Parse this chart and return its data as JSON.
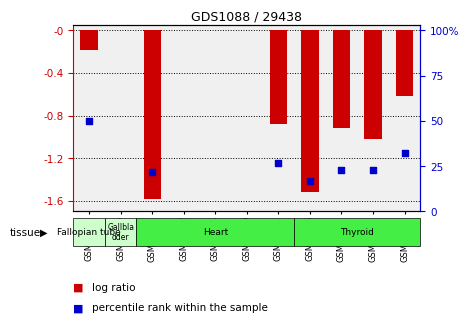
{
  "title": "GDS1088 / 29438",
  "samples": [
    "GSM39991",
    "GSM40000",
    "GSM39993",
    "GSM39992",
    "GSM39994",
    "GSM39999",
    "GSM40001",
    "GSM39995",
    "GSM39996",
    "GSM39997",
    "GSM39998"
  ],
  "log_ratios": [
    -0.18,
    0.0,
    -1.58,
    0.0,
    0.0,
    0.0,
    -0.88,
    -1.52,
    -0.92,
    -1.02,
    -0.62
  ],
  "percentile_ranks": [
    50,
    0,
    22,
    0,
    0,
    0,
    27,
    17,
    23,
    23,
    32
  ],
  "ylim_left": [
    -1.7,
    0.05
  ],
  "ylim_right": [
    -1.7,
    0.05
  ],
  "right_ticks_values": [
    -1.7,
    -1.275,
    -0.85,
    -0.425,
    0.0
  ],
  "right_ticks_labels": [
    "0",
    "25",
    "50",
    "75",
    "100%"
  ],
  "yticks_left": [
    0.0,
    -0.4,
    -0.8,
    -1.2,
    -1.6
  ],
  "tissue_groups": [
    {
      "label": "Fallopian tube",
      "start": 0,
      "end": 1,
      "color": "#ccffcc",
      "light": true
    },
    {
      "label": "Gallbla\ndder",
      "start": 1,
      "end": 2,
      "color": "#ccffcc",
      "light": true
    },
    {
      "label": "Heart",
      "start": 2,
      "end": 7,
      "color": "#44ee44",
      "light": false
    },
    {
      "label": "Thyroid",
      "start": 7,
      "end": 11,
      "color": "#44ee44",
      "light": false
    }
  ],
  "bar_color": "#cc0000",
  "dot_color": "#0000cc",
  "left_axis_color": "#cc0000",
  "right_axis_color": "#0000cc",
  "bar_width": 0.55,
  "dot_size": 15,
  "plot_bg": "#f0f0f0"
}
